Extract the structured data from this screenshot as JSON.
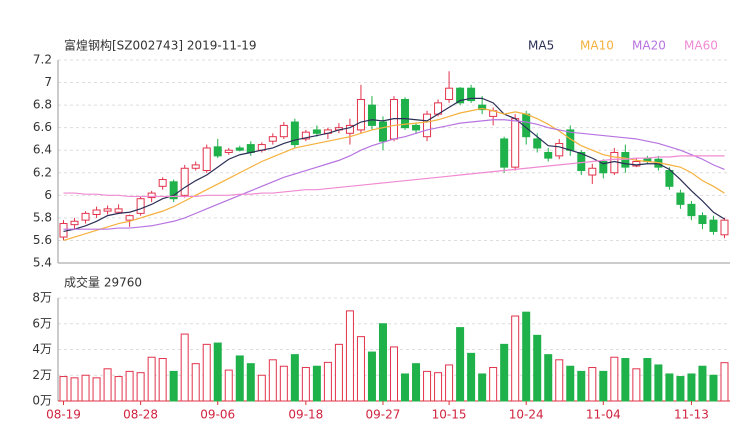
{
  "chart_data": [
    {
      "type": "candlestick",
      "title": "富煌钢构[SZ002743] 2019-11-19",
      "up_color": "#e2334c",
      "down_color": "#1fb14a",
      "grid": true,
      "ylim": [
        5.4,
        7.2
      ],
      "yticks": [
        5.4,
        5.6,
        5.8,
        6,
        6.2,
        6.4,
        6.6,
        6.8,
        7,
        7.2
      ],
      "open": [
        5.63,
        5.74,
        5.78,
        5.83,
        5.86,
        5.85,
        5.78,
        5.84,
        5.98,
        6.08,
        6.12,
        6.0,
        6.24,
        6.22,
        6.43,
        6.38,
        6.42,
        6.45,
        6.4,
        6.48,
        6.52,
        6.65,
        6.5,
        6.58,
        6.55,
        6.58,
        6.55,
        6.58,
        6.8,
        6.65,
        6.5,
        6.85,
        6.62,
        6.52,
        6.72,
        6.85,
        6.95,
        6.95,
        6.8,
        6.7,
        6.5,
        6.25,
        6.72,
        6.5,
        6.38,
        6.35,
        6.58,
        6.38,
        6.18,
        6.3,
        6.2,
        6.38,
        6.26,
        6.33,
        6.32,
        6.22,
        6.02,
        5.92,
        5.82,
        5.78,
        5.65
      ],
      "high": [
        5.78,
        5.8,
        5.86,
        5.9,
        5.91,
        5.92,
        5.83,
        5.99,
        6.04,
        6.16,
        6.14,
        6.27,
        6.3,
        6.45,
        6.5,
        6.42,
        6.44,
        6.48,
        6.47,
        6.55,
        6.65,
        6.68,
        6.58,
        6.62,
        6.6,
        6.64,
        6.68,
        6.98,
        6.88,
        6.7,
        6.88,
        6.87,
        6.64,
        6.75,
        6.85,
        7.1,
        6.96,
        6.98,
        6.88,
        6.78,
        6.52,
        6.72,
        6.75,
        6.55,
        6.42,
        6.5,
        6.62,
        6.4,
        6.28,
        6.32,
        6.42,
        6.45,
        6.33,
        6.35,
        6.35,
        6.25,
        6.05,
        5.95,
        5.85,
        5.82,
        5.8
      ],
      "low": [
        5.6,
        5.7,
        5.75,
        5.8,
        5.83,
        5.84,
        5.72,
        5.82,
        5.94,
        6.05,
        5.94,
        5.98,
        6.22,
        6.2,
        6.33,
        6.36,
        6.39,
        6.35,
        6.38,
        6.45,
        6.5,
        6.42,
        6.48,
        6.52,
        6.5,
        6.55,
        6.45,
        6.55,
        6.58,
        6.4,
        6.48,
        6.58,
        6.55,
        6.48,
        6.7,
        6.82,
        6.8,
        6.82,
        6.72,
        6.62,
        6.2,
        6.22,
        6.45,
        6.38,
        6.3,
        6.32,
        6.35,
        6.18,
        6.1,
        6.15,
        6.18,
        6.2,
        6.25,
        6.28,
        6.22,
        6.05,
        5.88,
        5.78,
        5.7,
        5.65,
        5.62
      ],
      "close": [
        5.75,
        5.77,
        5.84,
        5.87,
        5.88,
        5.88,
        5.82,
        5.97,
        6.02,
        6.14,
        5.97,
        6.24,
        6.27,
        6.42,
        6.35,
        6.4,
        6.4,
        6.38,
        6.45,
        6.52,
        6.62,
        6.45,
        6.56,
        6.55,
        6.58,
        6.6,
        6.62,
        6.85,
        6.62,
        6.48,
        6.85,
        6.6,
        6.58,
        6.72,
        6.82,
        6.95,
        6.82,
        6.84,
        6.76,
        6.75,
        6.25,
        6.68,
        6.52,
        6.42,
        6.33,
        6.46,
        6.4,
        6.22,
        6.24,
        6.2,
        6.38,
        6.25,
        6.3,
        6.3,
        6.25,
        6.08,
        5.92,
        5.82,
        5.75,
        5.68,
        5.78
      ],
      "series": [
        {
          "name": "MA5",
          "color": "#2b2f57",
          "values": [
            5.68,
            5.7,
            5.73,
            5.77,
            5.82,
            5.84,
            5.85,
            5.88,
            5.92,
            5.97,
            6.0,
            6.07,
            6.13,
            6.18,
            6.25,
            6.32,
            6.36,
            6.38,
            6.4,
            6.42,
            6.46,
            6.49,
            6.51,
            6.53,
            6.55,
            6.58,
            6.6,
            6.65,
            6.67,
            6.66,
            6.68,
            6.68,
            6.67,
            6.66,
            6.72,
            6.78,
            6.84,
            6.86,
            6.86,
            6.82,
            6.72,
            6.68,
            6.6,
            6.52,
            6.44,
            6.43,
            6.4,
            6.37,
            6.33,
            6.28,
            6.3,
            6.28,
            6.27,
            6.28,
            6.28,
            6.23,
            6.14,
            6.04,
            5.95,
            5.85,
            5.79
          ]
        },
        {
          "name": "MA10",
          "color": "#f5b13d",
          "values": [
            5.6,
            5.63,
            5.66,
            5.69,
            5.72,
            5.75,
            5.77,
            5.8,
            5.83,
            5.86,
            5.9,
            5.95,
            6.0,
            6.05,
            6.1,
            6.15,
            6.2,
            6.25,
            6.3,
            6.34,
            6.38,
            6.42,
            6.44,
            6.46,
            6.48,
            6.5,
            6.52,
            6.55,
            6.58,
            6.6,
            6.62,
            6.63,
            6.64,
            6.65,
            6.67,
            6.7,
            6.73,
            6.75,
            6.77,
            6.75,
            6.72,
            6.74,
            6.72,
            6.68,
            6.63,
            6.57,
            6.5,
            6.44,
            6.4,
            6.36,
            6.34,
            6.33,
            6.31,
            6.3,
            6.29,
            6.27,
            6.25,
            6.2,
            6.13,
            6.08,
            6.02
          ]
        },
        {
          "name": "MA20",
          "color": "#b774e0",
          "values": [
            5.7,
            5.7,
            5.7,
            5.7,
            5.7,
            5.71,
            5.71,
            5.72,
            5.73,
            5.75,
            5.77,
            5.8,
            5.84,
            5.88,
            5.92,
            5.96,
            6.0,
            6.04,
            6.08,
            6.12,
            6.16,
            6.19,
            6.22,
            6.25,
            6.28,
            6.31,
            6.35,
            6.4,
            6.44,
            6.47,
            6.5,
            6.52,
            6.55,
            6.58,
            6.6,
            6.62,
            6.64,
            6.65,
            6.66,
            6.67,
            6.67,
            6.66,
            6.65,
            6.63,
            6.6,
            6.58,
            6.56,
            6.55,
            6.54,
            6.53,
            6.52,
            6.51,
            6.5,
            6.48,
            6.46,
            6.43,
            6.4,
            6.36,
            6.32,
            6.27,
            6.23
          ]
        },
        {
          "name": "MA60",
          "color": "#f08ad2",
          "values": [
            6.02,
            6.02,
            6.01,
            6.01,
            6.0,
            6.0,
            5.99,
            5.99,
            5.99,
            5.99,
            5.99,
            5.99,
            5.99,
            6.0,
            6.0,
            6.0,
            6.01,
            6.01,
            6.02,
            6.02,
            6.03,
            6.04,
            6.05,
            6.05,
            6.06,
            6.07,
            6.08,
            6.09,
            6.1,
            6.11,
            6.12,
            6.13,
            6.14,
            6.15,
            6.16,
            6.17,
            6.18,
            6.19,
            6.2,
            6.21,
            6.22,
            6.23,
            6.24,
            6.25,
            6.26,
            6.27,
            6.28,
            6.29,
            6.3,
            6.31,
            6.32,
            6.32,
            6.33,
            6.33,
            6.34,
            6.34,
            6.35,
            6.35,
            6.35,
            6.35,
            6.35
          ]
        }
      ]
    },
    {
      "type": "volume",
      "title": "成交量 29760",
      "grid": true,
      "categories": [
        "08-19",
        null,
        null,
        null,
        null,
        null,
        null,
        "08-28",
        null,
        null,
        null,
        null,
        null,
        null,
        "09-06",
        null,
        null,
        null,
        null,
        null,
        null,
        null,
        "09-18",
        null,
        null,
        null,
        null,
        null,
        null,
        "09-27",
        null,
        null,
        null,
        null,
        null,
        "10-15",
        null,
        null,
        null,
        null,
        null,
        null,
        "10-24",
        null,
        null,
        null,
        null,
        null,
        null,
        "11-04",
        null,
        null,
        null,
        null,
        null,
        null,
        null,
        "11-13",
        null,
        null,
        null
      ],
      "values": [
        1.9,
        1.8,
        2.0,
        1.8,
        2.5,
        1.9,
        2.3,
        2.2,
        3.4,
        3.3,
        2.3,
        5.2,
        2.9,
        4.4,
        4.5,
        2.4,
        3.5,
        2.9,
        2.0,
        3.2,
        2.7,
        3.6,
        2.6,
        2.7,
        3.0,
        4.4,
        7.0,
        5.0,
        3.8,
        6.0,
        4.2,
        2.1,
        2.9,
        2.3,
        2.2,
        2.8,
        5.7,
        3.7,
        2.1,
        2.6,
        4.4,
        6.6,
        6.9,
        5.1,
        3.6,
        3.2,
        2.7,
        2.3,
        2.6,
        2.3,
        3.4,
        3.3,
        2.5,
        3.3,
        2.8,
        2.1,
        1.9,
        2.1,
        2.7,
        2.0,
        2.976
      ],
      "ylim": [
        0,
        8
      ],
      "yticks": [
        {
          "value": 0,
          "label": "0万"
        },
        {
          "value": 2,
          "label": "2万"
        },
        {
          "value": 4,
          "label": "4万"
        },
        {
          "value": 6,
          "label": "6万"
        },
        {
          "value": 8,
          "label": "8万"
        }
      ]
    }
  ]
}
